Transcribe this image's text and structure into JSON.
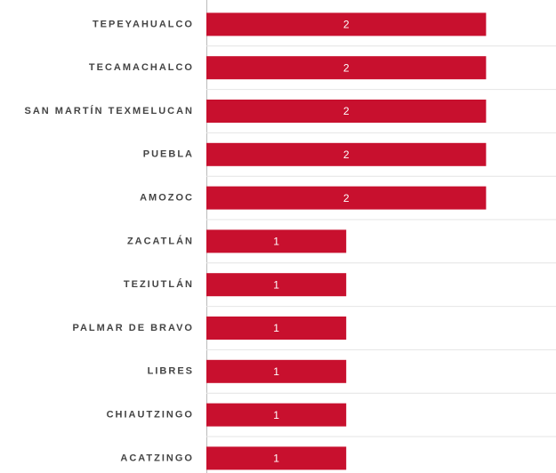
{
  "chart_data": {
    "type": "bar",
    "orientation": "horizontal",
    "categories": [
      "TEPEYAHUALCO",
      "TECAMACHALCO",
      "SAN MARTÍN TEXMELUCAN",
      "PUEBLA",
      "AMOZOC",
      "ZACATLÁN",
      "TEZIUTLÁN",
      "PALMAR DE BRAVO",
      "LIBRES",
      "CHIAUTZINGO",
      "ACATZINGO"
    ],
    "values": [
      2,
      2,
      2,
      2,
      2,
      1,
      1,
      1,
      1,
      1,
      1
    ],
    "color": "#c8102e",
    "xlim": [
      0,
      2.5
    ]
  }
}
